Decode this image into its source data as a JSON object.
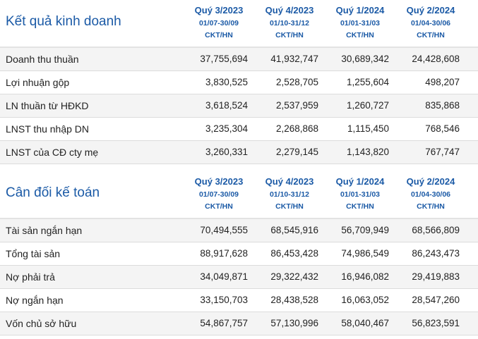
{
  "sections": [
    {
      "title": "Kết quả kinh doanh",
      "columns": [
        {
          "quarter": "Quý 3/2023",
          "dates": "01/07-30/09",
          "unit": "CKT/HN"
        },
        {
          "quarter": "Quý 4/2023",
          "dates": "01/10-31/12",
          "unit": "CKT/HN"
        },
        {
          "quarter": "Quý 1/2024",
          "dates": "01/01-31/03",
          "unit": "CKT/HN"
        },
        {
          "quarter": "Quý 2/2024",
          "dates": "01/04-30/06",
          "unit": "CKT/HN"
        }
      ],
      "rows": [
        {
          "label": "Doanh thu thuần",
          "values": [
            "37,755,694",
            "41,932,747",
            "30,689,342",
            "24,428,608"
          ]
        },
        {
          "label": "Lợi nhuận gộp",
          "values": [
            "3,830,525",
            "2,528,705",
            "1,255,604",
            "498,207"
          ]
        },
        {
          "label": "LN thuần từ HĐKD",
          "values": [
            "3,618,524",
            "2,537,959",
            "1,260,727",
            "835,868"
          ]
        },
        {
          "label": "LNST thu nhập DN",
          "values": [
            "3,235,304",
            "2,268,868",
            "1,115,450",
            "768,546"
          ]
        },
        {
          "label": "LNST của CĐ cty mẹ",
          "values": [
            "3,260,331",
            "2,279,145",
            "1,143,820",
            "767,747"
          ]
        }
      ]
    },
    {
      "title": "Cân đối kế toán",
      "columns": [
        {
          "quarter": "Quý 3/2023",
          "dates": "01/07-30/09",
          "unit": "CKT/HN"
        },
        {
          "quarter": "Quý 4/2023",
          "dates": "01/10-31/12",
          "unit": "CKT/HN"
        },
        {
          "quarter": "Quý 1/2024",
          "dates": "01/01-31/03",
          "unit": "CKT/HN"
        },
        {
          "quarter": "Quý 2/2024",
          "dates": "01/04-30/06",
          "unit": "CKT/HN"
        }
      ],
      "rows": [
        {
          "label": "Tài sản ngắn hạn",
          "values": [
            "70,494,555",
            "68,545,916",
            "56,709,949",
            "68,566,809"
          ]
        },
        {
          "label": "Tổng tài sản",
          "values": [
            "88,917,628",
            "86,453,428",
            "74,986,549",
            "86,243,473"
          ]
        },
        {
          "label": "Nợ phải trả",
          "values": [
            "34,049,871",
            "29,322,432",
            "16,946,082",
            "29,419,883"
          ]
        },
        {
          "label": "Nợ ngắn hạn",
          "values": [
            "33,150,703",
            "28,438,528",
            "16,063,052",
            "28,547,260"
          ]
        },
        {
          "label": "Vốn chủ sở hữu",
          "values": [
            "54,867,757",
            "57,130,996",
            "58,040,467",
            "56,823,591"
          ]
        }
      ]
    }
  ]
}
